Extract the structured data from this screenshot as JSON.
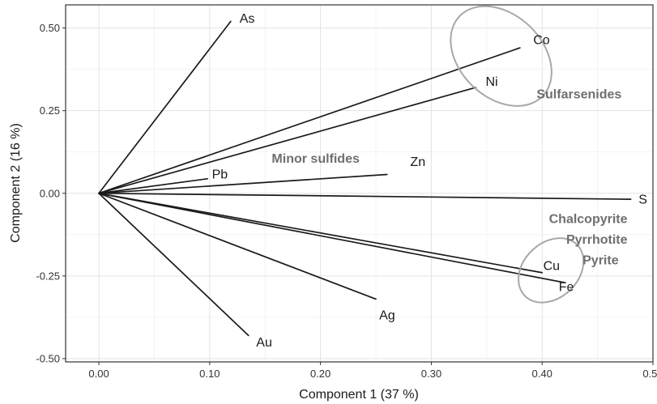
{
  "chart_data": {
    "type": "biplot",
    "xlabel": "Component 1 (37 %)",
    "ylabel": "Component 2 (16 %)",
    "xlim": [
      -0.03,
      0.5
    ],
    "ylim": [
      -0.51,
      0.57
    ],
    "xticks": [
      0.0,
      0.1,
      0.2,
      0.3,
      0.4,
      0.5
    ],
    "yticks": [
      -0.5,
      -0.25,
      0.0,
      0.25,
      0.5
    ],
    "xtick_labels": [
      "0.00",
      "0.10",
      "0.20",
      "0.30",
      "0.40",
      "0.50"
    ],
    "ytick_labels": [
      "-0.50",
      "-0.25",
      "0.00",
      "0.25",
      "0.50"
    ],
    "grid": true,
    "line_color": "#1a1a1a",
    "ellipse_color": "#a8a8a8",
    "group_label_color": "#6f6f6f",
    "vectors": [
      {
        "name": "As",
        "x": 0.119,
        "y": 0.52
      },
      {
        "name": "Co",
        "x": 0.38,
        "y": 0.44
      },
      {
        "name": "Ni",
        "x": 0.34,
        "y": 0.32
      },
      {
        "name": "Zn",
        "x": 0.26,
        "y": 0.057
      },
      {
        "name": "Pb",
        "x": 0.098,
        "y": 0.044
      },
      {
        "name": "S",
        "x": 0.48,
        "y": -0.018
      },
      {
        "name": "Cu",
        "x": 0.4,
        "y": -0.24
      },
      {
        "name": "Fe",
        "x": 0.42,
        "y": -0.27
      },
      {
        "name": "Ag",
        "x": 0.25,
        "y": -0.32
      },
      {
        "name": "Au",
        "x": 0.135,
        "y": -0.43
      }
    ],
    "labels": [
      {
        "text": "As",
        "x": 0.127,
        "y": 0.53
      },
      {
        "text": "Co",
        "x": 0.392,
        "y": 0.465
      },
      {
        "text": "Ni",
        "x": 0.349,
        "y": 0.338
      },
      {
        "text": "Zn",
        "x": 0.281,
        "y": 0.096
      },
      {
        "text": "Pb",
        "x": 0.102,
        "y": 0.058
      },
      {
        "text": "S",
        "x": 0.487,
        "y": -0.018
      },
      {
        "text": "Cu",
        "x": 0.401,
        "y": -0.218
      },
      {
        "text": "Fe",
        "x": 0.415,
        "y": -0.282
      },
      {
        "text": "Ag",
        "x": 0.253,
        "y": -0.368
      },
      {
        "text": "Au",
        "x": 0.142,
        "y": -0.45
      }
    ],
    "ellipses": [
      {
        "group": "Co-Ni",
        "cx": 0.363,
        "cy": 0.415,
        "rx": 0.052,
        "ry": 0.125,
        "angle": 44
      },
      {
        "group": "Cu-Fe",
        "cx": 0.408,
        "cy": -0.233,
        "rx": 0.033,
        "ry": 0.083,
        "angle": -44
      }
    ],
    "group_labels": [
      {
        "text": "Sulfarsenides",
        "x": 0.395,
        "y": 0.301,
        "anchor": "start"
      },
      {
        "text": "Minor sulfides",
        "x": 0.156,
        "y": 0.106,
        "anchor": "start"
      },
      {
        "text": "Chalcopyrite",
        "x": 0.477,
        "y": -0.076,
        "anchor": "end"
      },
      {
        "text": "Pyrrhotite",
        "x": 0.477,
        "y": -0.139,
        "anchor": "end"
      },
      {
        "text": "Pyrite",
        "x": 0.469,
        "y": -0.202,
        "anchor": "end"
      }
    ]
  }
}
